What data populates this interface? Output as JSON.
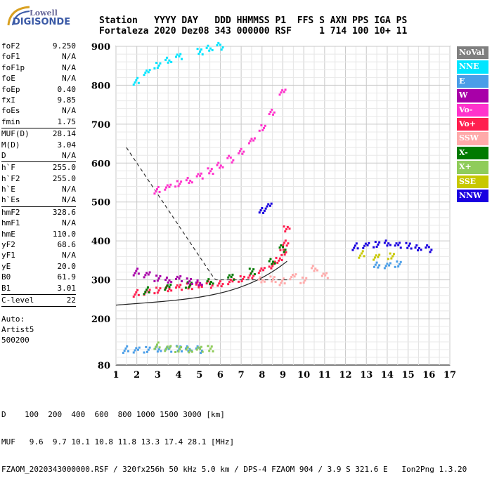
{
  "logo": {
    "line1": "Lowell",
    "line2": "DIGISONDE"
  },
  "header": {
    "line1": "Station   YYYY DAY   DDD HHMMSS P1  FFS S AXN PPS IGA PS",
    "line2": "Fortaleza 2020 Dez08 343 000000 RSF     1 714 100 10+ 11"
  },
  "params": [
    {
      "group": [
        {
          "k": "foF2",
          "v": "9.250"
        },
        {
          "k": "foF1",
          "v": "N/A"
        },
        {
          "k": "foF1p",
          "v": "N/A"
        },
        {
          "k": "foE",
          "v": "N/A"
        },
        {
          "k": "foEp",
          "v": "0.40"
        },
        {
          "k": "fxI",
          "v": "9.85"
        },
        {
          "k": "foEs",
          "v": "N/A"
        },
        {
          "k": "fmin",
          "v": "1.75"
        }
      ]
    },
    {
      "group": [
        {
          "k": "MUF(D)",
          "v": "28.14"
        },
        {
          "k": "M(D)",
          "v": "3.04"
        },
        {
          "k": "D",
          "v": "N/A"
        }
      ]
    },
    {
      "group": [
        {
          "k": "h`F",
          "v": "255.0"
        },
        {
          "k": "h`F2",
          "v": "255.0"
        },
        {
          "k": "h`E",
          "v": "N/A"
        },
        {
          "k": "h`Es",
          "v": "N/A"
        }
      ]
    },
    {
      "group": [
        {
          "k": "hmF2",
          "v": "328.6"
        },
        {
          "k": "hmF1",
          "v": "N/A"
        },
        {
          "k": "hmE",
          "v": "110.0"
        },
        {
          "k": "yF2",
          "v": "68.6"
        },
        {
          "k": "yF1",
          "v": "N/A"
        },
        {
          "k": "yE",
          "v": "20.0"
        },
        {
          "k": "B0",
          "v": "61.9"
        },
        {
          "k": "B1",
          "v": "3.01"
        }
      ]
    },
    {
      "group": [
        {
          "k": "C-level",
          "v": "22"
        }
      ]
    }
  ],
  "auto": {
    "line1": "Auto:",
    "line2": "Artist5",
    "line3": "500200"
  },
  "legend": [
    {
      "label": "NoVal",
      "color": "#7f7f7f"
    },
    {
      "label": "NNE",
      "color": "#00e5ff"
    },
    {
      "label": "E",
      "color": "#4a9ee8"
    },
    {
      "label": "W",
      "color": "#a800a8"
    },
    {
      "label": "Vo-",
      "color": "#ff33cc"
    },
    {
      "label": "Vo+",
      "color": "#ff1f4f"
    },
    {
      "label": "SSW",
      "color": "#ffaaaa"
    },
    {
      "label": "X-",
      "color": "#007a00"
    },
    {
      "label": "X+",
      "color": "#8fcc5a"
    },
    {
      "label": "SSE",
      "color": "#c8c800"
    },
    {
      "label": "NNW",
      "color": "#1a00e0"
    }
  ],
  "footer": {
    "line1": "D    100  200  400  600  800 1000 1500 3000 [km]",
    "line2": "MUF   9.6  9.7 10.1 10.8 11.8 13.3 17.4 28.1 [MHz]",
    "line3": "FZAOM_2020343000000.RSF / 320fx256h 50 kHz 5.0 km / DPS-4 FZAOM 904 / 3.9 S 321.6 E   Ion2Png 1.3.20"
  },
  "chart_data": {
    "type": "scatter",
    "title": "",
    "xlabel": "",
    "ylabel": "",
    "xlim": [
      1,
      17
    ],
    "ylim": [
      80,
      900
    ],
    "xticks": [
      "1",
      "2",
      "3",
      "4",
      "5",
      "6",
      "7",
      "8",
      "9",
      "10",
      "11",
      "12",
      "13",
      "14",
      "15",
      "16",
      "17"
    ],
    "yticks": [
      "80",
      "200",
      "300",
      "400",
      "500",
      "600",
      "700",
      "800",
      "900"
    ],
    "grid": true,
    "series": [
      {
        "name": "Vo+",
        "color": "#ff1f4f",
        "x": [
          2.0,
          2.5,
          3.0,
          3.5,
          4.0,
          4.5,
          5.0,
          5.5,
          6.0,
          6.5,
          7.0,
          7.5,
          8.0,
          8.5,
          8.8,
          9.0,
          9.1,
          9.2
        ],
        "y": [
          265,
          270,
          274,
          278,
          280,
          282,
          285,
          288,
          292,
          296,
          302,
          310,
          322,
          338,
          352,
          372,
          395,
          430
        ]
      },
      {
        "name": "Vo-",
        "color": "#ff33cc",
        "x": [
          3.0,
          3.5,
          4.0,
          4.5,
          5.0,
          5.5,
          6.0,
          6.5,
          7.0,
          7.5,
          8.0,
          8.5,
          9.0
        ],
        "y": [
          530,
          540,
          548,
          556,
          566,
          578,
          592,
          610,
          632,
          658,
          690,
          730,
          780
        ]
      },
      {
        "name": "NNE",
        "color": "#00e5ff",
        "x": [
          2.0,
          2.5,
          3.0,
          3.5,
          4.0,
          5.0,
          5.5,
          6.0
        ],
        "y": [
          810,
          835,
          852,
          865,
          873,
          885,
          893,
          900
        ]
      },
      {
        "name": "X-",
        "color": "#007a00",
        "x": [
          2.5,
          3.5,
          4.5,
          5.5,
          6.5,
          7.5,
          8.5,
          9.0
        ],
        "y": [
          272,
          283,
          288,
          296,
          306,
          320,
          345,
          380
        ]
      },
      {
        "name": "W",
        "color": "#a800a8",
        "x": [
          2.0,
          2.5,
          3.0,
          3.5,
          4.0,
          4.5,
          5.0
        ],
        "y": [
          320,
          315,
          305,
          300,
          302,
          295,
          290
        ]
      },
      {
        "name": "E",
        "color": "#4a9ee8",
        "x": [
          1.5,
          2.0,
          2.5,
          3.0,
          3.5,
          4.0,
          4.5,
          5.0,
          13.5,
          14.0,
          14.5
        ],
        "y": [
          120,
          121,
          121,
          122,
          120,
          121,
          120,
          120,
          340,
          337,
          340
        ]
      },
      {
        "name": "NNW",
        "color": "#1a00e0",
        "x": [
          12.5,
          13.0,
          13.5,
          14.0,
          14.5,
          15.0,
          15.5,
          16.0,
          8.0,
          8.3
        ],
        "y": [
          385,
          390,
          392,
          395,
          388,
          386,
          380,
          380,
          480,
          490
        ]
      },
      {
        "name": "SSW",
        "color": "#ffaaaa",
        "x": [
          9.0,
          9.5,
          10.0,
          10.5,
          11.0,
          8.5,
          8.0
        ],
        "y": [
          295,
          310,
          300,
          330,
          310,
          300,
          298
        ]
      },
      {
        "name": "X+",
        "color": "#8fcc5a",
        "x": [
          3.0,
          3.5,
          4.0,
          4.5,
          5.0,
          5.5
        ],
        "y": [
          130,
          125,
          122,
          120,
          120,
          121
        ]
      },
      {
        "name": "SSE",
        "color": "#c8c800",
        "x": [
          12.8,
          13.5,
          14.2
        ],
        "y": [
          365,
          360,
          362
        ]
      }
    ]
  }
}
